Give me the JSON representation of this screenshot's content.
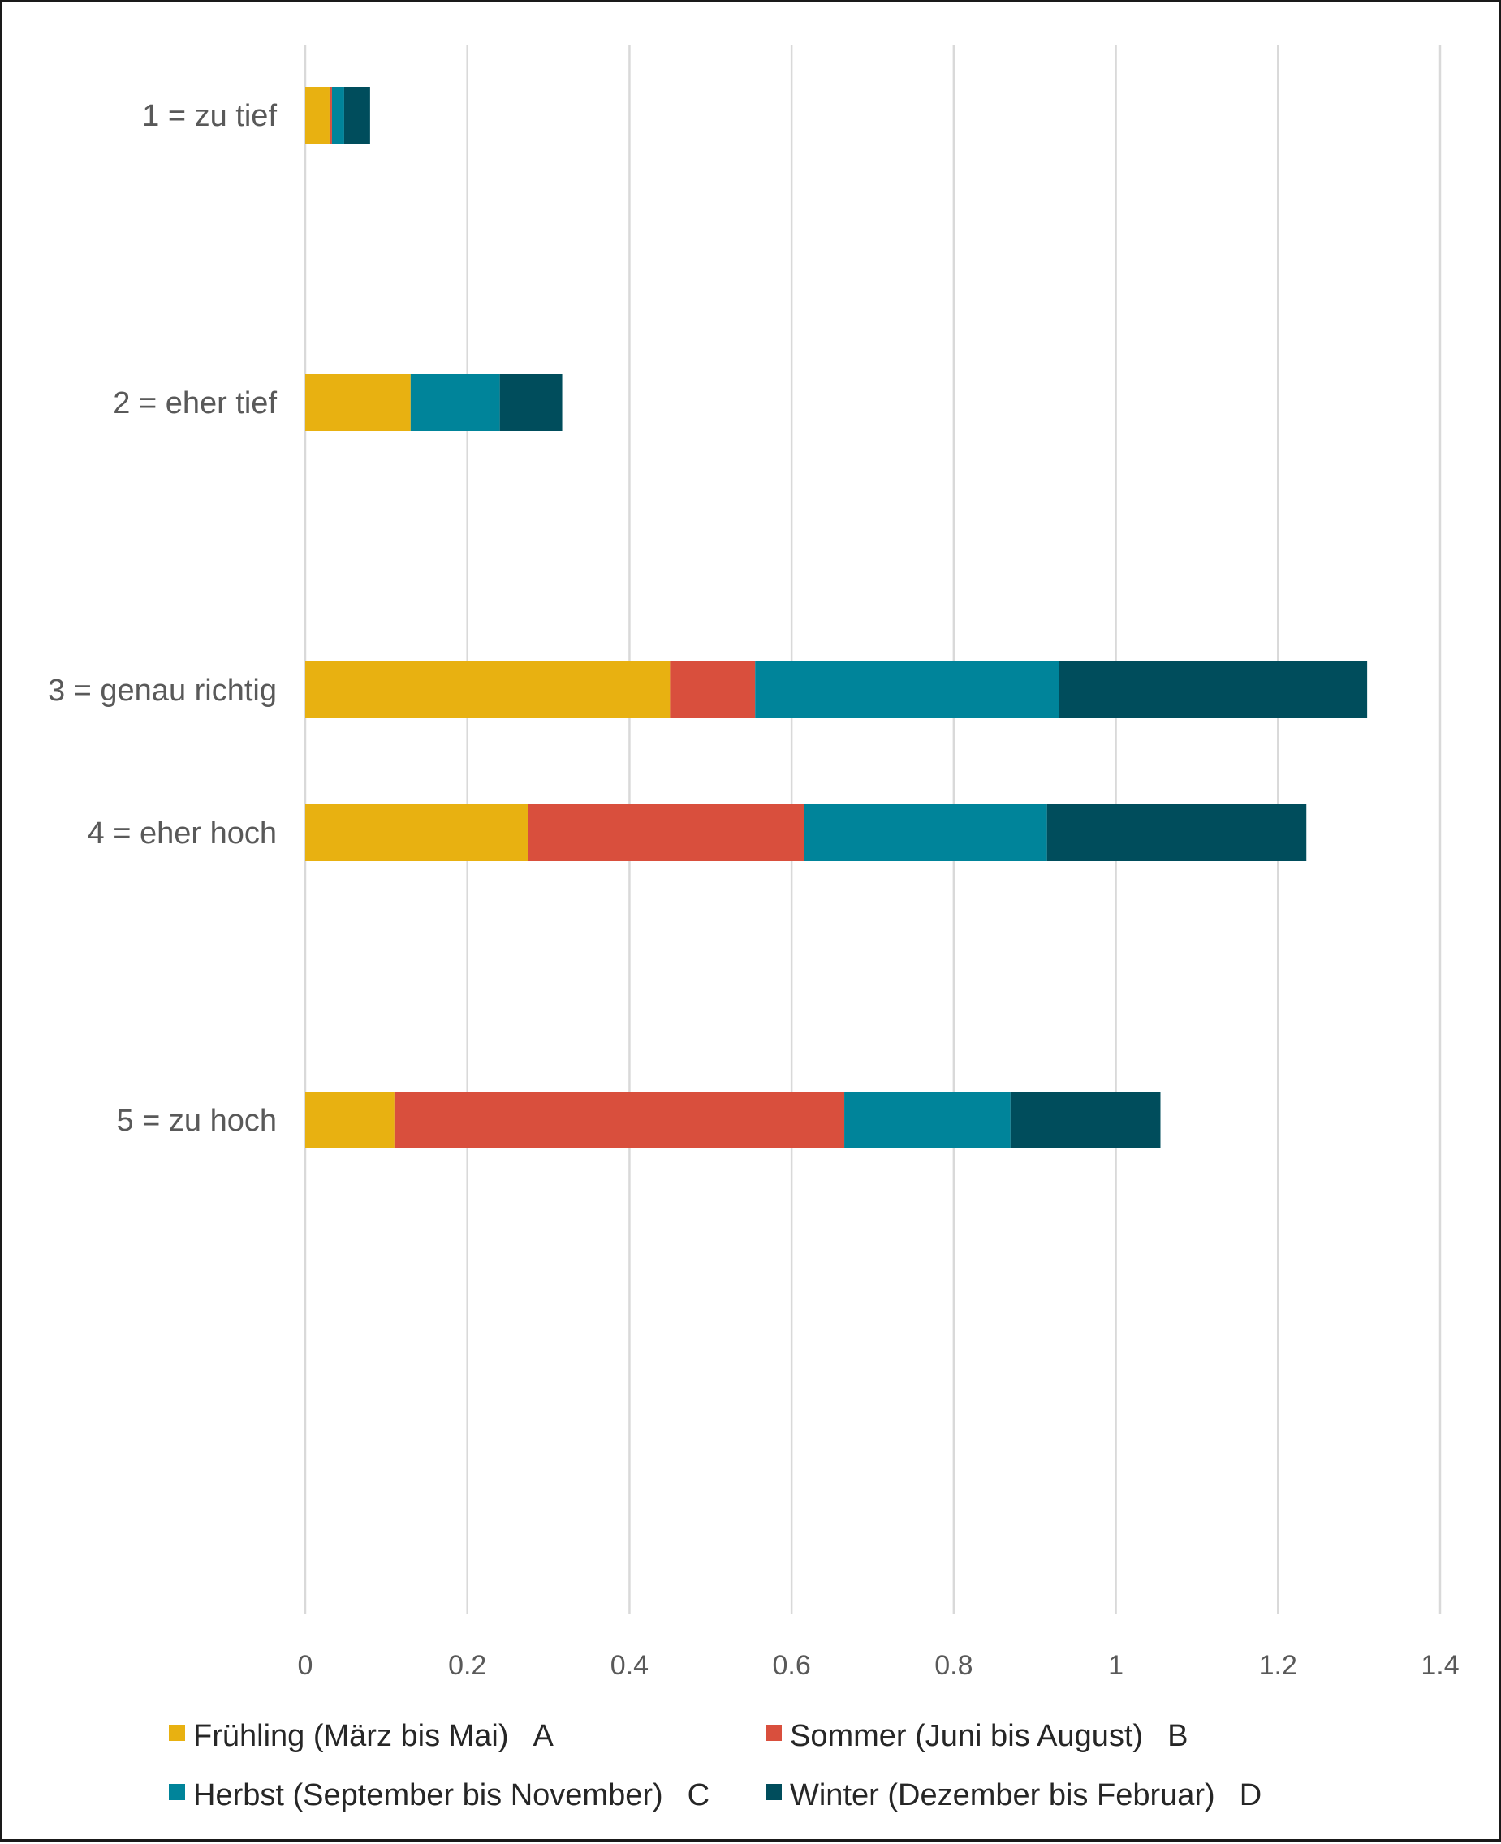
{
  "chart_data": {
    "type": "bar",
    "orientation": "horizontal",
    "stacked": true,
    "categories": [
      "1 = zu tief",
      "2 = eher tief",
      "3 = genau richtig",
      "4 = eher hoch",
      "5 = zu hoch"
    ],
    "series": [
      {
        "name": "Frühling (März bis Mai)",
        "letter": "A",
        "color": "#e8b111",
        "values": [
          0.03,
          0.13,
          0.45,
          0.275,
          0.11
        ]
      },
      {
        "name": "Sommer (Juni bis August)",
        "letter": "B",
        "color": "#d94f3d",
        "values": [
          0.003,
          0.0,
          0.105,
          0.34,
          0.555
        ]
      },
      {
        "name": "Herbst (September bis November)",
        "letter": "C",
        "color": "#00849a",
        "values": [
          0.015,
          0.11,
          0.375,
          0.3,
          0.205
        ]
      },
      {
        "name": "Winter (Dezember bis Februar)",
        "letter": "D",
        "color": "#004d5c",
        "values": [
          0.032,
          0.077,
          0.38,
          0.32,
          0.185
        ]
      }
    ],
    "x_ticks": [
      "0",
      "0.2",
      "0.4",
      "0.6",
      "0.8",
      "1",
      "1.2",
      "1.4"
    ],
    "xlim": [
      0,
      1.4
    ],
    "grid": true,
    "legend_position": "bottom",
    "title": "",
    "xlabel": "",
    "ylabel": ""
  }
}
